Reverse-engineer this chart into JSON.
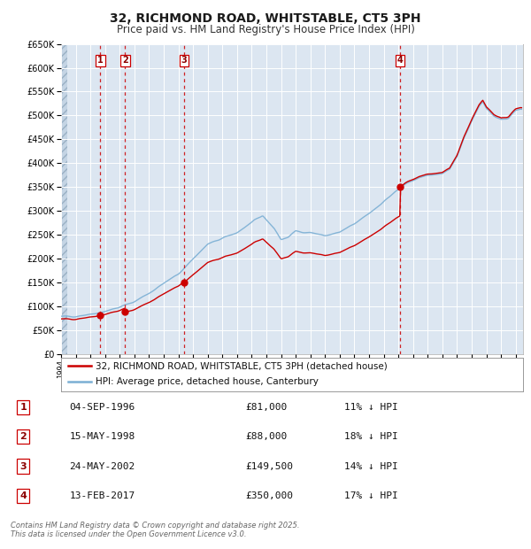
{
  "title": "32, RICHMOND ROAD, WHITSTABLE, CT5 3PH",
  "subtitle": "Price paid vs. HM Land Registry's House Price Index (HPI)",
  "ylim": [
    0,
    650000
  ],
  "yticks": [
    0,
    50000,
    100000,
    150000,
    200000,
    250000,
    300000,
    350000,
    400000,
    450000,
    500000,
    550000,
    600000,
    650000
  ],
  "xlim_start": 1994.0,
  "xlim_end": 2025.5,
  "background_color": "#ffffff",
  "plot_bg_color": "#dce6f1",
  "grid_color": "#ffffff",
  "sale_color": "#cc0000",
  "hpi_color": "#7bafd4",
  "transactions": [
    {
      "num": 1,
      "date": 1996.67,
      "price": 81000,
      "label": "04-SEP-1996",
      "price_str": "£81,000",
      "pct": "11% ↓ HPI"
    },
    {
      "num": 2,
      "date": 1998.37,
      "price": 88000,
      "label": "15-MAY-1998",
      "price_str": "£88,000",
      "pct": "18% ↓ HPI"
    },
    {
      "num": 3,
      "date": 2002.38,
      "price": 149500,
      "label": "24-MAY-2002",
      "price_str": "£149,500",
      "pct": "14% ↓ HPI"
    },
    {
      "num": 4,
      "date": 2017.12,
      "price": 350000,
      "label": "13-FEB-2017",
      "price_str": "£350,000",
      "pct": "17% ↓ HPI"
    }
  ],
  "legend_sale": "32, RICHMOND ROAD, WHITSTABLE, CT5 3PH (detached house)",
  "legend_hpi": "HPI: Average price, detached house, Canterbury",
  "footer": "Contains HM Land Registry data © Crown copyright and database right 2025.\nThis data is licensed under the Open Government Licence v3.0."
}
